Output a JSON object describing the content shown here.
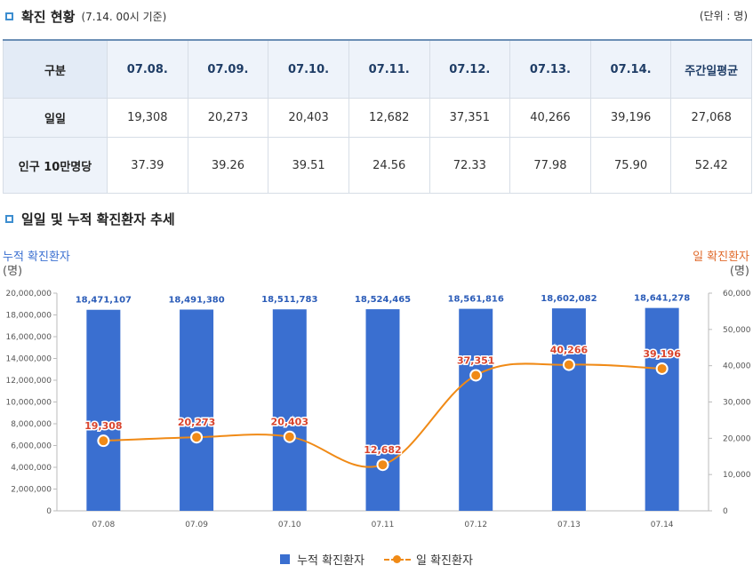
{
  "section1": {
    "title": "확진 현황",
    "subtitle": "(7.14. 00시 기준)",
    "unit": "(단위 : 명)"
  },
  "table": {
    "corner": "구분",
    "columns": [
      "07.08.",
      "07.09.",
      "07.10.",
      "07.11.",
      "07.12.",
      "07.13.",
      "07.14.",
      "주간일평균"
    ],
    "rows": [
      {
        "label": "일일",
        "cells": [
          "19,308",
          "20,273",
          "20,403",
          "12,682",
          "37,351",
          "40,266",
          "39,196",
          "27,068"
        ]
      },
      {
        "label": "인구 10만명당",
        "cells": [
          "37.39",
          "39.26",
          "39.51",
          "24.56",
          "72.33",
          "77.98",
          "75.90",
          "52.42"
        ]
      }
    ]
  },
  "section2": {
    "title": "일일 및 누적 확진환자 추세"
  },
  "chart_data": {
    "type": "bar",
    "categories": [
      "07.08",
      "07.09",
      "07.10",
      "07.11",
      "07.12",
      "07.13",
      "07.14"
    ],
    "series": [
      {
        "name": "누적 확진환자",
        "type": "bar",
        "axis": "left",
        "color": "#3a6fd0",
        "values": [
          18471107,
          18491380,
          18511783,
          18524465,
          18561816,
          18602082,
          18641278
        ],
        "labels": [
          "18,471,107",
          "18,491,380",
          "18,511,783",
          "18,524,465",
          "18,561,816",
          "18,602,082",
          "18,641,278"
        ]
      },
      {
        "name": "일 확진환자",
        "type": "line",
        "axis": "right",
        "color": "#f08a16",
        "values": [
          19308,
          20273,
          20403,
          12682,
          37351,
          40266,
          39196
        ],
        "labels": [
          "19,308",
          "20,273",
          "20,403",
          "12,682",
          "37,351",
          "40,266",
          "39,196"
        ]
      }
    ],
    "y_left": {
      "title": "누적 확진환자",
      "unit": "(명)",
      "ylim": [
        0,
        20000000
      ],
      "ticks": [
        "20,000,000",
        "18,000,000",
        "16,000,000",
        "14,000,000",
        "12,000,000",
        "10,000,000",
        "8,000,000",
        "6,000,000",
        "4,000,000",
        "2,000,000",
        "0"
      ]
    },
    "y_right": {
      "title": "일 확진환자",
      "unit": "(명)",
      "ylim": [
        0,
        60000
      ],
      "ticks": [
        "60,000",
        "50,000",
        "40,000",
        "30,000",
        "20,000",
        "10,000",
        "0"
      ]
    },
    "legend_position": "bottom",
    "title_color_left": "#3a6fd0",
    "title_color_right": "#e06a2b"
  }
}
